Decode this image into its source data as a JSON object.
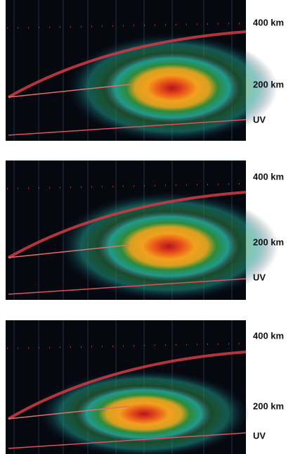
{
  "panels": [
    {
      "labels": [
        "400 km",
        "200 km",
        "UV"
      ]
    },
    {
      "labels": [
        "400 km",
        "200 km",
        "UV"
      ]
    },
    {
      "labels": [
        "400 km",
        "200 km",
        "UV"
      ]
    }
  ]
}
